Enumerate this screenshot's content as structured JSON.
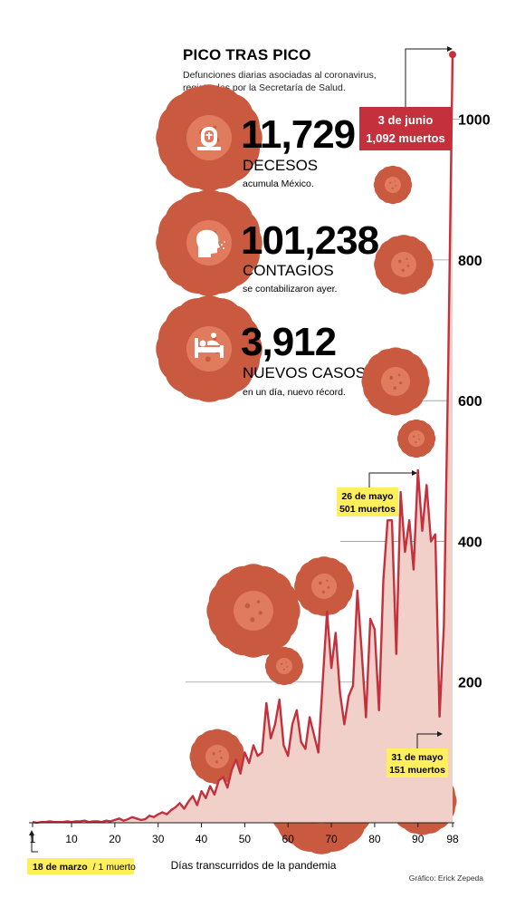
{
  "header": {
    "title": "PICO TRAS PICO",
    "subtitle_line1": "Defunciones diarias asociadas al coronavirus,",
    "subtitle_line2": "registradas por la Secretaría de Salud."
  },
  "stats": [
    {
      "icon": "tombstone-icon",
      "value": "11,729",
      "label": "DECESOS",
      "sublabel": "acumula México."
    },
    {
      "icon": "infected-person-icon",
      "value": "101,238",
      "label": "CONTAGIOS",
      "sublabel": "se contabilizaron ayer."
    },
    {
      "icon": "hospital-bed-icon",
      "value": "3,912",
      "label": "NUEVOS CASOS",
      "sublabel": "en un día, nuevo récord."
    }
  ],
  "annotations": {
    "peak_date": "3 de junio",
    "peak_value": "1,092 muertos",
    "may26_date": "26 de mayo",
    "may26_value": "501 muertos",
    "may31_date": "31 de mayo",
    "may31_value": "151 muertos",
    "start_date": "18 de marzo",
    "start_value": "/ 1 muerto"
  },
  "credit": "Gráfico: Erick Zepeda",
  "colors": {
    "line": "#c4303c",
    "fill": "#f2d0ca",
    "virus": "#e07b5e",
    "virus_dark": "#c95a40",
    "highlight": "#ffef5a",
    "callout": "#c4303c"
  },
  "chart_data": {
    "type": "area",
    "title": "PICO TRAS PICO",
    "xlabel": "Días transcurridos de la pandemia",
    "ylabel": "",
    "xlim": [
      1,
      98
    ],
    "ylim": [
      0,
      1100
    ],
    "x_ticks": [
      1,
      10,
      20,
      30,
      40,
      50,
      60,
      70,
      80,
      90,
      98
    ],
    "y_ticks": [
      200,
      400,
      600,
      800,
      1000
    ],
    "x": [
      1,
      2,
      3,
      4,
      5,
      6,
      7,
      8,
      9,
      10,
      11,
      12,
      13,
      14,
      15,
      16,
      17,
      18,
      19,
      20,
      21,
      22,
      23,
      24,
      25,
      26,
      27,
      28,
      29,
      30,
      31,
      32,
      33,
      34,
      35,
      36,
      37,
      38,
      39,
      40,
      41,
      42,
      43,
      44,
      45,
      46,
      47,
      48,
      49,
      50,
      51,
      52,
      53,
      54,
      55,
      56,
      57,
      58,
      59,
      60,
      61,
      62,
      63,
      64,
      65,
      66,
      67,
      68,
      69,
      70,
      71,
      72,
      73,
      74,
      75,
      76,
      77,
      78,
      79,
      80,
      81,
      82,
      83,
      84,
      85,
      86,
      87,
      88,
      89,
      90,
      91,
      92,
      93,
      94,
      95,
      96,
      97,
      98
    ],
    "y": [
      1,
      0,
      1,
      1,
      2,
      1,
      1,
      1,
      2,
      1,
      2,
      2,
      3,
      1,
      2,
      2,
      1,
      3,
      2,
      4,
      6,
      3,
      5,
      8,
      6,
      4,
      5,
      10,
      8,
      12,
      15,
      12,
      18,
      22,
      28,
      20,
      30,
      38,
      25,
      45,
      35,
      52,
      40,
      60,
      65,
      50,
      75,
      90,
      70,
      100,
      85,
      110,
      95,
      100,
      170,
      120,
      140,
      175,
      110,
      95,
      140,
      160,
      115,
      105,
      150,
      125,
      100,
      200,
      300,
      220,
      270,
      185,
      140,
      180,
      195,
      330,
      245,
      150,
      290,
      275,
      160,
      345,
      430,
      430,
      240,
      470,
      385,
      430,
      360,
      501,
      415,
      480,
      400,
      410,
      151,
      280,
      650,
      1092
    ]
  }
}
